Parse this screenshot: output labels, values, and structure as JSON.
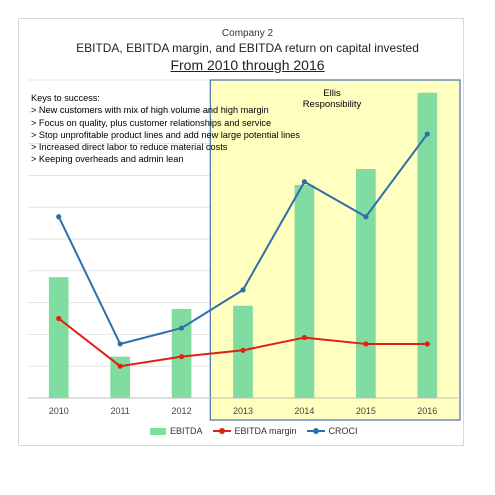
{
  "header": {
    "company": "Company 2",
    "title": "EBITDA, EBITDA margin, and EBITDA return on capital invested",
    "subtitle": "From 2010 through 2016"
  },
  "keys": {
    "heading": "Keys to success:",
    "items": [
      "> New customers with mix of high volume and high margin",
      "> Focus on quality, plus customer relationships and service",
      "> Stop unprofitable product lines and add new large potential lines",
      "> Increased direct labor to reduce material costs",
      "> Keeping overheads and admin lean"
    ]
  },
  "responsibility": {
    "label_line1": "Ellis",
    "label_line2": "Responsibility",
    "color": "#ffffbf",
    "border_color": "#4a6fb0",
    "from": "2013",
    "to": "2016"
  },
  "chart_data": {
    "type": "bar",
    "categories": [
      "2010",
      "2011",
      "2012",
      "2013",
      "2014",
      "2015",
      "2016"
    ],
    "ylim": [
      0,
      100
    ],
    "grid": true,
    "legend_position": "bottom",
    "series": [
      {
        "name": "EBITDA",
        "kind": "bar",
        "color": "#80dca0",
        "values": [
          38,
          13,
          28,
          29,
          67,
          72,
          96
        ]
      },
      {
        "name": "EBITDA margin",
        "kind": "line",
        "color": "#e02010",
        "values": [
          25,
          10,
          13,
          15,
          19,
          17,
          17
        ]
      },
      {
        "name": "CROCI",
        "kind": "line",
        "color": "#2f6fa8",
        "values": [
          57,
          17,
          22,
          34,
          68,
          57,
          83
        ]
      }
    ]
  }
}
